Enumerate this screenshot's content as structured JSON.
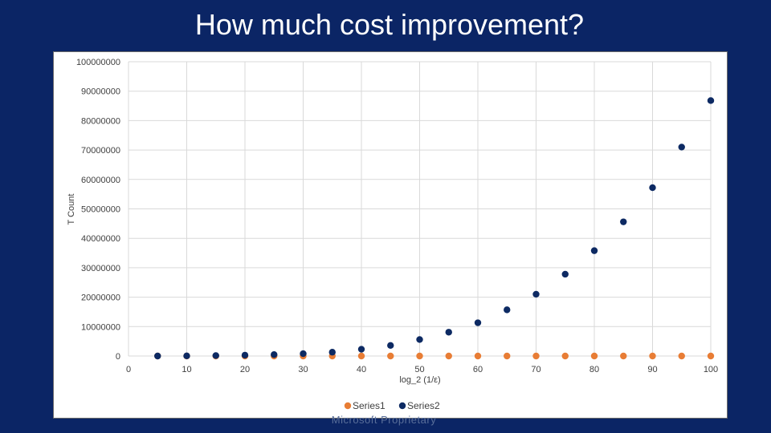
{
  "slide": {
    "title": "How much cost improvement?",
    "footer": "Microsoft Proprietary"
  },
  "colors": {
    "background": "#0b2565",
    "series1": "#e87d35",
    "series2": "#0d2a63",
    "grid": "#d9d9d9"
  },
  "chart_data": {
    "type": "scatter",
    "title": "",
    "xlabel": "log_2 (1/ε)",
    "ylabel": "T Count",
    "xlim": [
      0,
      100
    ],
    "ylim": [
      0,
      100000000
    ],
    "x_ticks": [
      0,
      10,
      20,
      30,
      40,
      50,
      60,
      70,
      80,
      90,
      100
    ],
    "y_ticks": [
      0,
      10000000,
      20000000,
      30000000,
      40000000,
      50000000,
      60000000,
      70000000,
      80000000,
      90000000,
      100000000
    ],
    "grid": true,
    "legend_position": "bottom",
    "series": [
      {
        "name": "Series1",
        "color": "#e87d35",
        "x": [
          5,
          10,
          15,
          20,
          25,
          30,
          35,
          40,
          45,
          50,
          55,
          60,
          65,
          70,
          75,
          80,
          85,
          90,
          95,
          100
        ],
        "y": [
          0,
          0,
          0,
          0,
          0,
          0,
          0,
          0,
          0,
          0,
          0,
          0,
          0,
          0,
          0,
          0,
          0,
          0,
          0,
          0
        ]
      },
      {
        "name": "Series2",
        "color": "#0d2a63",
        "x": [
          5,
          10,
          15,
          20,
          25,
          30,
          35,
          40,
          45,
          50,
          55,
          60,
          65,
          70,
          75,
          80,
          85,
          90,
          95,
          100
        ],
        "y": [
          0,
          50000,
          150000,
          300000,
          500000,
          800000,
          1300000,
          2300000,
          3600000,
          5600000,
          8100000,
          11300000,
          15700000,
          21000000,
          27800000,
          35800000,
          45600000,
          57200000,
          71000000,
          86800000
        ]
      }
    ]
  }
}
